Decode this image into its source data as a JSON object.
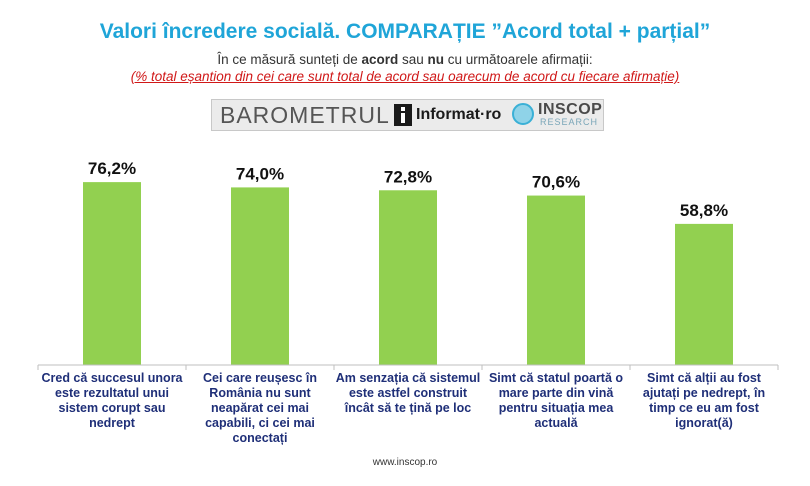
{
  "header": {
    "title": "Valori încredere socială. COMPARAȚIE ”Acord total + parțial”",
    "subtitle_pre": "În ce măsură sunteți de ",
    "subtitle_acord": "acord",
    "subtitle_mid": " sau ",
    "subtitle_nu": "nu",
    "subtitle_post": " cu următoarele afirmații:",
    "note": "(% total eșantion din cei care sunt total de acord sau oarecum de acord cu fiecare afirmație)"
  },
  "banner": {
    "barometrul": "BAROMETRUL",
    "informat": "Informat·ro",
    "inscop": "INSCOP",
    "research": "RESEARCH"
  },
  "chart_data": {
    "type": "bar",
    "categories": [
      "Cred că succesul unora este rezultatul unui sistem corupt sau nedrept",
      "Cei care reușesc în România nu sunt neapărat cei mai capabili, ci cei mai conectați",
      "Am senzația că sistemul este astfel construit încât să te țină pe loc",
      "Simt că statul poartă o mare parte din vină pentru situația mea actuală",
      "Simt că alții au fost ajutați pe nedrept, în timp ce eu am fost ignorat(ă)"
    ],
    "values": [
      76.2,
      74.0,
      72.8,
      70.6,
      58.8
    ],
    "value_labels": [
      "76,2%",
      "74,0%",
      "72,8%",
      "70,6%",
      "58,8%"
    ],
    "bar_color": "#92d050",
    "label_color": "#1f2f78",
    "ylim": [
      0,
      100
    ],
    "grid": false
  },
  "footer": {
    "website": "www.inscop.ro"
  }
}
